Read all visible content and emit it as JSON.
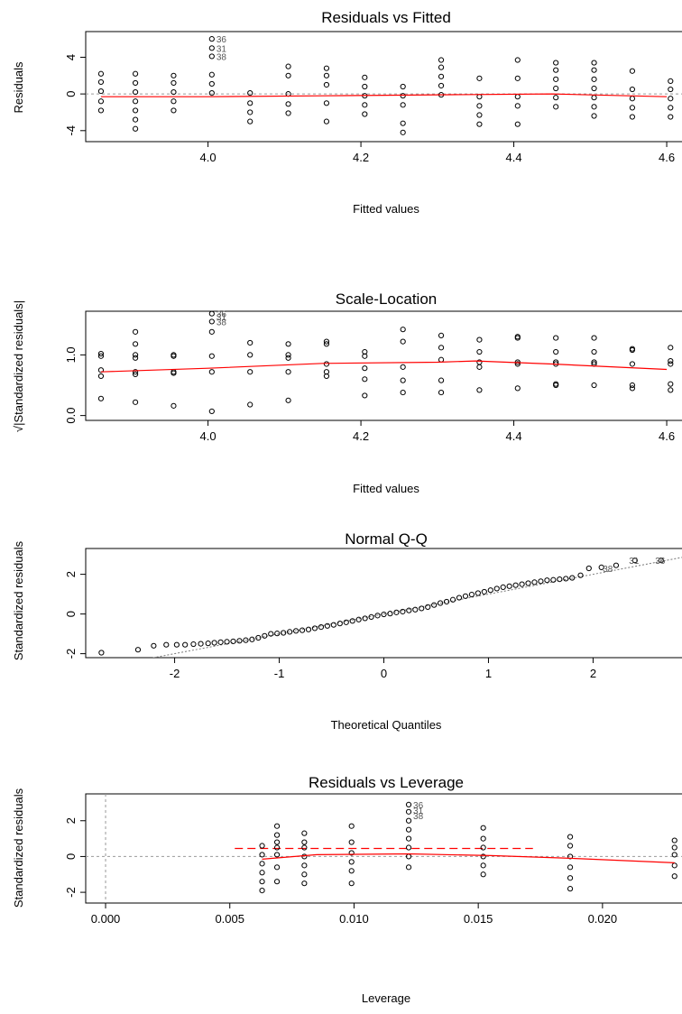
{
  "chart_data": [
    {
      "type": "scatter",
      "title": "Residuals vs Fitted",
      "xlabel": "Fitted values",
      "ylabel": "Residuals",
      "xlim": [
        3.84,
        4.62
      ],
      "ylim": [
        -5.2,
        6.8
      ],
      "xticks": [
        {
          "v": 4.0,
          "label": "4.0"
        },
        {
          "v": 4.2,
          "label": "4.2"
        },
        {
          "v": 4.4,
          "label": "4.4"
        },
        {
          "v": 4.6,
          "label": "4.6"
        }
      ],
      "yticks": [
        {
          "v": -4,
          "label": "-4"
        },
        {
          "v": 0,
          "label": "0"
        },
        {
          "v": 4,
          "label": "4"
        }
      ],
      "reference_line": 0,
      "columns": [
        {
          "x": 3.86,
          "y": [
            -1.8,
            -0.8,
            0.3,
            1.3,
            2.2
          ]
        },
        {
          "x": 3.905,
          "y": [
            -3.8,
            -2.8,
            -1.8,
            -0.8,
            0.2,
            1.2,
            2.2
          ]
        },
        {
          "x": 3.955,
          "y": [
            -1.8,
            -0.8,
            0.2,
            1.2,
            2.0
          ]
        },
        {
          "x": 4.005,
          "y": [
            0.1,
            1.1,
            2.1,
            4.1,
            5.0,
            6.0
          ]
        },
        {
          "x": 4.055,
          "y": [
            -3.0,
            -2.0,
            -1.0,
            0.1
          ]
        },
        {
          "x": 4.105,
          "y": [
            -2.1,
            -1.1,
            0.0,
            2.0,
            3.0
          ]
        },
        {
          "x": 4.155,
          "y": [
            -3.0,
            -1.0,
            1.0,
            2.0,
            2.8
          ]
        },
        {
          "x": 4.205,
          "y": [
            -2.2,
            -1.2,
            -0.2,
            0.8,
            1.8
          ]
        },
        {
          "x": 4.255,
          "y": [
            -4.2,
            -3.2,
            -1.2,
            -0.2,
            0.8
          ]
        },
        {
          "x": 4.305,
          "y": [
            -0.1,
            0.9,
            1.9,
            2.9,
            3.7
          ]
        },
        {
          "x": 4.355,
          "y": [
            -3.3,
            -2.3,
            -1.3,
            -0.3,
            1.7
          ]
        },
        {
          "x": 4.405,
          "y": [
            -3.3,
            -1.3,
            -0.3,
            1.7,
            3.7
          ]
        },
        {
          "x": 4.455,
          "y": [
            -1.4,
            -0.4,
            0.6,
            1.6,
            2.6,
            3.4
          ]
        },
        {
          "x": 4.505,
          "y": [
            -2.4,
            -1.4,
            -0.4,
            0.6,
            1.6,
            2.6,
            3.4
          ]
        },
        {
          "x": 4.555,
          "y": [
            -2.5,
            -1.5,
            -0.5,
            0.5,
            2.5
          ]
        },
        {
          "x": 4.605,
          "y": [
            -2.5,
            -1.5,
            -0.5,
            0.5,
            1.4
          ]
        }
      ],
      "smooth": [
        [
          3.86,
          -0.3
        ],
        [
          4.0,
          -0.3
        ],
        [
          4.15,
          -0.2
        ],
        [
          4.3,
          -0.1
        ],
        [
          4.45,
          0.0
        ],
        [
          4.6,
          -0.3
        ]
      ],
      "point_labels": [
        {
          "text": "36",
          "x": 4.005,
          "y": 6.0
        },
        {
          "text": "31",
          "x": 4.005,
          "y": 5.0
        },
        {
          "text": "38",
          "x": 4.005,
          "y": 4.1
        }
      ]
    },
    {
      "type": "scatter",
      "title": "Scale-Location",
      "xlabel": "Fitted values",
      "ylabel": "√|Standardized residuals|",
      "xlim": [
        3.84,
        4.62
      ],
      "ylim": [
        -0.08,
        1.72
      ],
      "xticks": [
        {
          "v": 4.0,
          "label": "4.0"
        },
        {
          "v": 4.2,
          "label": "4.2"
        },
        {
          "v": 4.4,
          "label": "4.4"
        },
        {
          "v": 4.6,
          "label": "4.6"
        }
      ],
      "yticks": [
        {
          "v": 0.0,
          "label": "0.0"
        },
        {
          "v": 1.0,
          "label": "1.0"
        }
      ],
      "columns": [
        {
          "x": 3.86,
          "y": [
            0.28,
            0.65,
            0.75,
            0.98,
            1.02
          ]
        },
        {
          "x": 3.905,
          "y": [
            0.22,
            0.68,
            0.72,
            0.95,
            1.0,
            1.18,
            1.38
          ]
        },
        {
          "x": 3.955,
          "y": [
            0.16,
            0.7,
            0.72,
            0.98,
            1.0
          ]
        },
        {
          "x": 4.005,
          "y": [
            0.07,
            0.72,
            0.98,
            1.38,
            1.55,
            1.68
          ]
        },
        {
          "x": 4.055,
          "y": [
            0.18,
            0.72,
            1.0,
            1.2
          ]
        },
        {
          "x": 4.105,
          "y": [
            0.25,
            0.72,
            0.95,
            1.0,
            1.18
          ]
        },
        {
          "x": 4.155,
          "y": [
            0.65,
            0.72,
            0.85,
            1.18,
            1.22
          ]
        },
        {
          "x": 4.205,
          "y": [
            0.33,
            0.6,
            0.78,
            0.98,
            1.05
          ]
        },
        {
          "x": 4.255,
          "y": [
            0.38,
            0.58,
            0.8,
            1.22,
            1.42
          ]
        },
        {
          "x": 4.305,
          "y": [
            0.38,
            0.58,
            0.92,
            1.12,
            1.32
          ]
        },
        {
          "x": 4.355,
          "y": [
            0.42,
            0.8,
            0.88,
            1.05,
            1.25
          ]
        },
        {
          "x": 4.405,
          "y": [
            0.45,
            0.85,
            0.88,
            1.28,
            1.3
          ]
        },
        {
          "x": 4.455,
          "y": [
            0.5,
            0.52,
            0.85,
            0.88,
            1.05,
            1.28
          ]
        },
        {
          "x": 4.505,
          "y": [
            0.5,
            0.85,
            0.88,
            1.05,
            1.28
          ]
        },
        {
          "x": 4.555,
          "y": [
            0.45,
            0.5,
            0.85,
            1.08,
            1.1
          ]
        },
        {
          "x": 4.605,
          "y": [
            0.42,
            0.52,
            0.85,
            0.9,
            1.12
          ]
        }
      ],
      "smooth": [
        [
          3.86,
          0.72
        ],
        [
          4.0,
          0.78
        ],
        [
          4.15,
          0.86
        ],
        [
          4.3,
          0.88
        ],
        [
          4.35,
          0.9
        ],
        [
          4.45,
          0.85
        ],
        [
          4.6,
          0.76
        ]
      ],
      "point_labels": [
        {
          "text": "36",
          "x": 4.005,
          "y": 1.68
        },
        {
          "text": "31",
          "x": 4.005,
          "y": 1.63
        },
        {
          "text": "38",
          "x": 4.005,
          "y": 1.55
        }
      ]
    },
    {
      "type": "scatter",
      "title": "Normal Q-Q",
      "xlabel": "Theoretical Quantiles",
      "ylabel": "Standardized residuals",
      "xlim": [
        -2.85,
        2.85
      ],
      "ylim": [
        -2.2,
        3.3
      ],
      "xticks": [
        {
          "v": -2,
          "label": "-2"
        },
        {
          "v": -1,
          "label": "-1"
        },
        {
          "v": 0,
          "label": "0"
        },
        {
          "v": 1,
          "label": "1"
        },
        {
          "v": 2,
          "label": "2"
        }
      ],
      "yticks": [
        {
          "v": -2,
          "label": "-2"
        },
        {
          "v": 0,
          "label": "0"
        },
        {
          "v": 2,
          "label": "2"
        }
      ],
      "qq_line": {
        "slope": 1.0,
        "intercept": 0.0
      },
      "points": [
        [
          -2.7,
          -1.95
        ],
        [
          -2.35,
          -1.8
        ],
        [
          -2.2,
          -1.6
        ],
        [
          -2.08,
          -1.55
        ],
        [
          -1.98,
          -1.55
        ],
        [
          -1.9,
          -1.55
        ],
        [
          -1.82,
          -1.52
        ],
        [
          -1.75,
          -1.5
        ],
        [
          -1.68,
          -1.48
        ],
        [
          -1.62,
          -1.45
        ],
        [
          -1.56,
          -1.42
        ],
        [
          -1.5,
          -1.4
        ],
        [
          -1.44,
          -1.38
        ],
        [
          -1.38,
          -1.35
        ],
        [
          -1.32,
          -1.32
        ],
        [
          -1.26,
          -1.28
        ],
        [
          -1.2,
          -1.2
        ],
        [
          -1.14,
          -1.1
        ],
        [
          -1.08,
          -1.0
        ],
        [
          -1.02,
          -0.98
        ],
        [
          -0.96,
          -0.95
        ],
        [
          -0.9,
          -0.9
        ],
        [
          -0.84,
          -0.85
        ],
        [
          -0.78,
          -0.82
        ],
        [
          -0.72,
          -0.78
        ],
        [
          -0.66,
          -0.72
        ],
        [
          -0.6,
          -0.66
        ],
        [
          -0.54,
          -0.6
        ],
        [
          -0.48,
          -0.55
        ],
        [
          -0.42,
          -0.48
        ],
        [
          -0.36,
          -0.42
        ],
        [
          -0.3,
          -0.35
        ],
        [
          -0.24,
          -0.28
        ],
        [
          -0.18,
          -0.22
        ],
        [
          -0.12,
          -0.15
        ],
        [
          -0.06,
          -0.08
        ],
        [
          0.0,
          -0.02
        ],
        [
          0.06,
          0.02
        ],
        [
          0.12,
          0.08
        ],
        [
          0.18,
          0.12
        ],
        [
          0.24,
          0.18
        ],
        [
          0.3,
          0.22
        ],
        [
          0.36,
          0.28
        ],
        [
          0.42,
          0.35
        ],
        [
          0.48,
          0.45
        ],
        [
          0.54,
          0.55
        ],
        [
          0.6,
          0.62
        ],
        [
          0.66,
          0.72
        ],
        [
          0.72,
          0.82
        ],
        [
          0.78,
          0.9
        ],
        [
          0.84,
          0.98
        ],
        [
          0.9,
          1.05
        ],
        [
          0.96,
          1.12
        ],
        [
          1.02,
          1.2
        ],
        [
          1.08,
          1.28
        ],
        [
          1.14,
          1.35
        ],
        [
          1.2,
          1.4
        ],
        [
          1.26,
          1.45
        ],
        [
          1.32,
          1.5
        ],
        [
          1.38,
          1.55
        ],
        [
          1.44,
          1.6
        ],
        [
          1.5,
          1.65
        ],
        [
          1.56,
          1.7
        ],
        [
          1.62,
          1.72
        ],
        [
          1.68,
          1.75
        ],
        [
          1.74,
          1.78
        ],
        [
          1.8,
          1.82
        ],
        [
          1.88,
          1.95
        ],
        [
          1.96,
          2.3
        ],
        [
          2.08,
          2.35
        ],
        [
          2.22,
          2.45
        ],
        [
          2.4,
          2.7
        ],
        [
          2.65,
          2.7
        ]
      ],
      "point_labels": [
        {
          "text": "38",
          "x": 2.05,
          "y": 2.3
        },
        {
          "text": "31",
          "x": 2.3,
          "y": 2.7
        },
        {
          "text": "36",
          "x": 2.55,
          "y": 2.7
        }
      ]
    },
    {
      "type": "scatter",
      "title": "Residuals vs Leverage",
      "xlabel": "Leverage",
      "ylabel": "Standardized residuals",
      "xlim": [
        -0.0008,
        0.0232
      ],
      "ylim": [
        -2.6,
        3.5
      ],
      "xticks": [
        {
          "v": 0.0,
          "label": "0.000"
        },
        {
          "v": 0.005,
          "label": "0.005"
        },
        {
          "v": 0.01,
          "label": "0.010"
        },
        {
          "v": 0.015,
          "label": "0.015"
        },
        {
          "v": 0.02,
          "label": "0.020"
        }
      ],
      "yticks": [
        {
          "v": -2,
          "label": "-2"
        },
        {
          "v": 0,
          "label": "0"
        },
        {
          "v": 2,
          "label": "2"
        }
      ],
      "reference_lines": {
        "x": 0,
        "y": 0
      },
      "cooks_distance": {
        "y": 0.45,
        "x_from": 0.0052,
        "x_to": 0.0172
      },
      "columns": [
        {
          "x": 0.0063,
          "y": [
            -1.9,
            -1.4,
            -0.9,
            -0.4,
            0.1,
            0.6
          ]
        },
        {
          "x": 0.0069,
          "y": [
            -1.4,
            -0.6,
            0.1,
            0.5,
            0.8,
            1.2,
            1.7
          ]
        },
        {
          "x": 0.008,
          "y": [
            -1.5,
            -1.0,
            -0.5,
            0.0,
            0.5,
            0.8,
            1.3
          ]
        },
        {
          "x": 0.0099,
          "y": [
            -1.5,
            -0.8,
            -0.3,
            0.2,
            0.8,
            1.7
          ]
        },
        {
          "x": 0.0122,
          "y": [
            -0.6,
            0.0,
            0.5,
            1.0,
            1.5,
            2.0,
            2.5,
            2.9
          ]
        },
        {
          "x": 0.0152,
          "y": [
            -1.0,
            -0.5,
            0.0,
            0.5,
            1.0,
            1.6
          ]
        },
        {
          "x": 0.0187,
          "y": [
            -1.8,
            -1.2,
            -0.6,
            0.0,
            0.6,
            1.1
          ]
        },
        {
          "x": 0.0229,
          "y": [
            -1.1,
            -0.5,
            0.1,
            0.5,
            0.9
          ]
        }
      ],
      "smooth": [
        [
          0.0063,
          -0.15
        ],
        [
          0.0085,
          0.1
        ],
        [
          0.0122,
          0.15
        ],
        [
          0.0155,
          0.05
        ],
        [
          0.0187,
          -0.1
        ],
        [
          0.0229,
          -0.35
        ]
      ],
      "point_labels": [
        {
          "text": "36",
          "x": 0.0122,
          "y": 2.9
        },
        {
          "text": "31",
          "x": 0.0122,
          "y": 2.6
        },
        {
          "text": "38",
          "x": 0.0122,
          "y": 2.3
        }
      ]
    }
  ]
}
